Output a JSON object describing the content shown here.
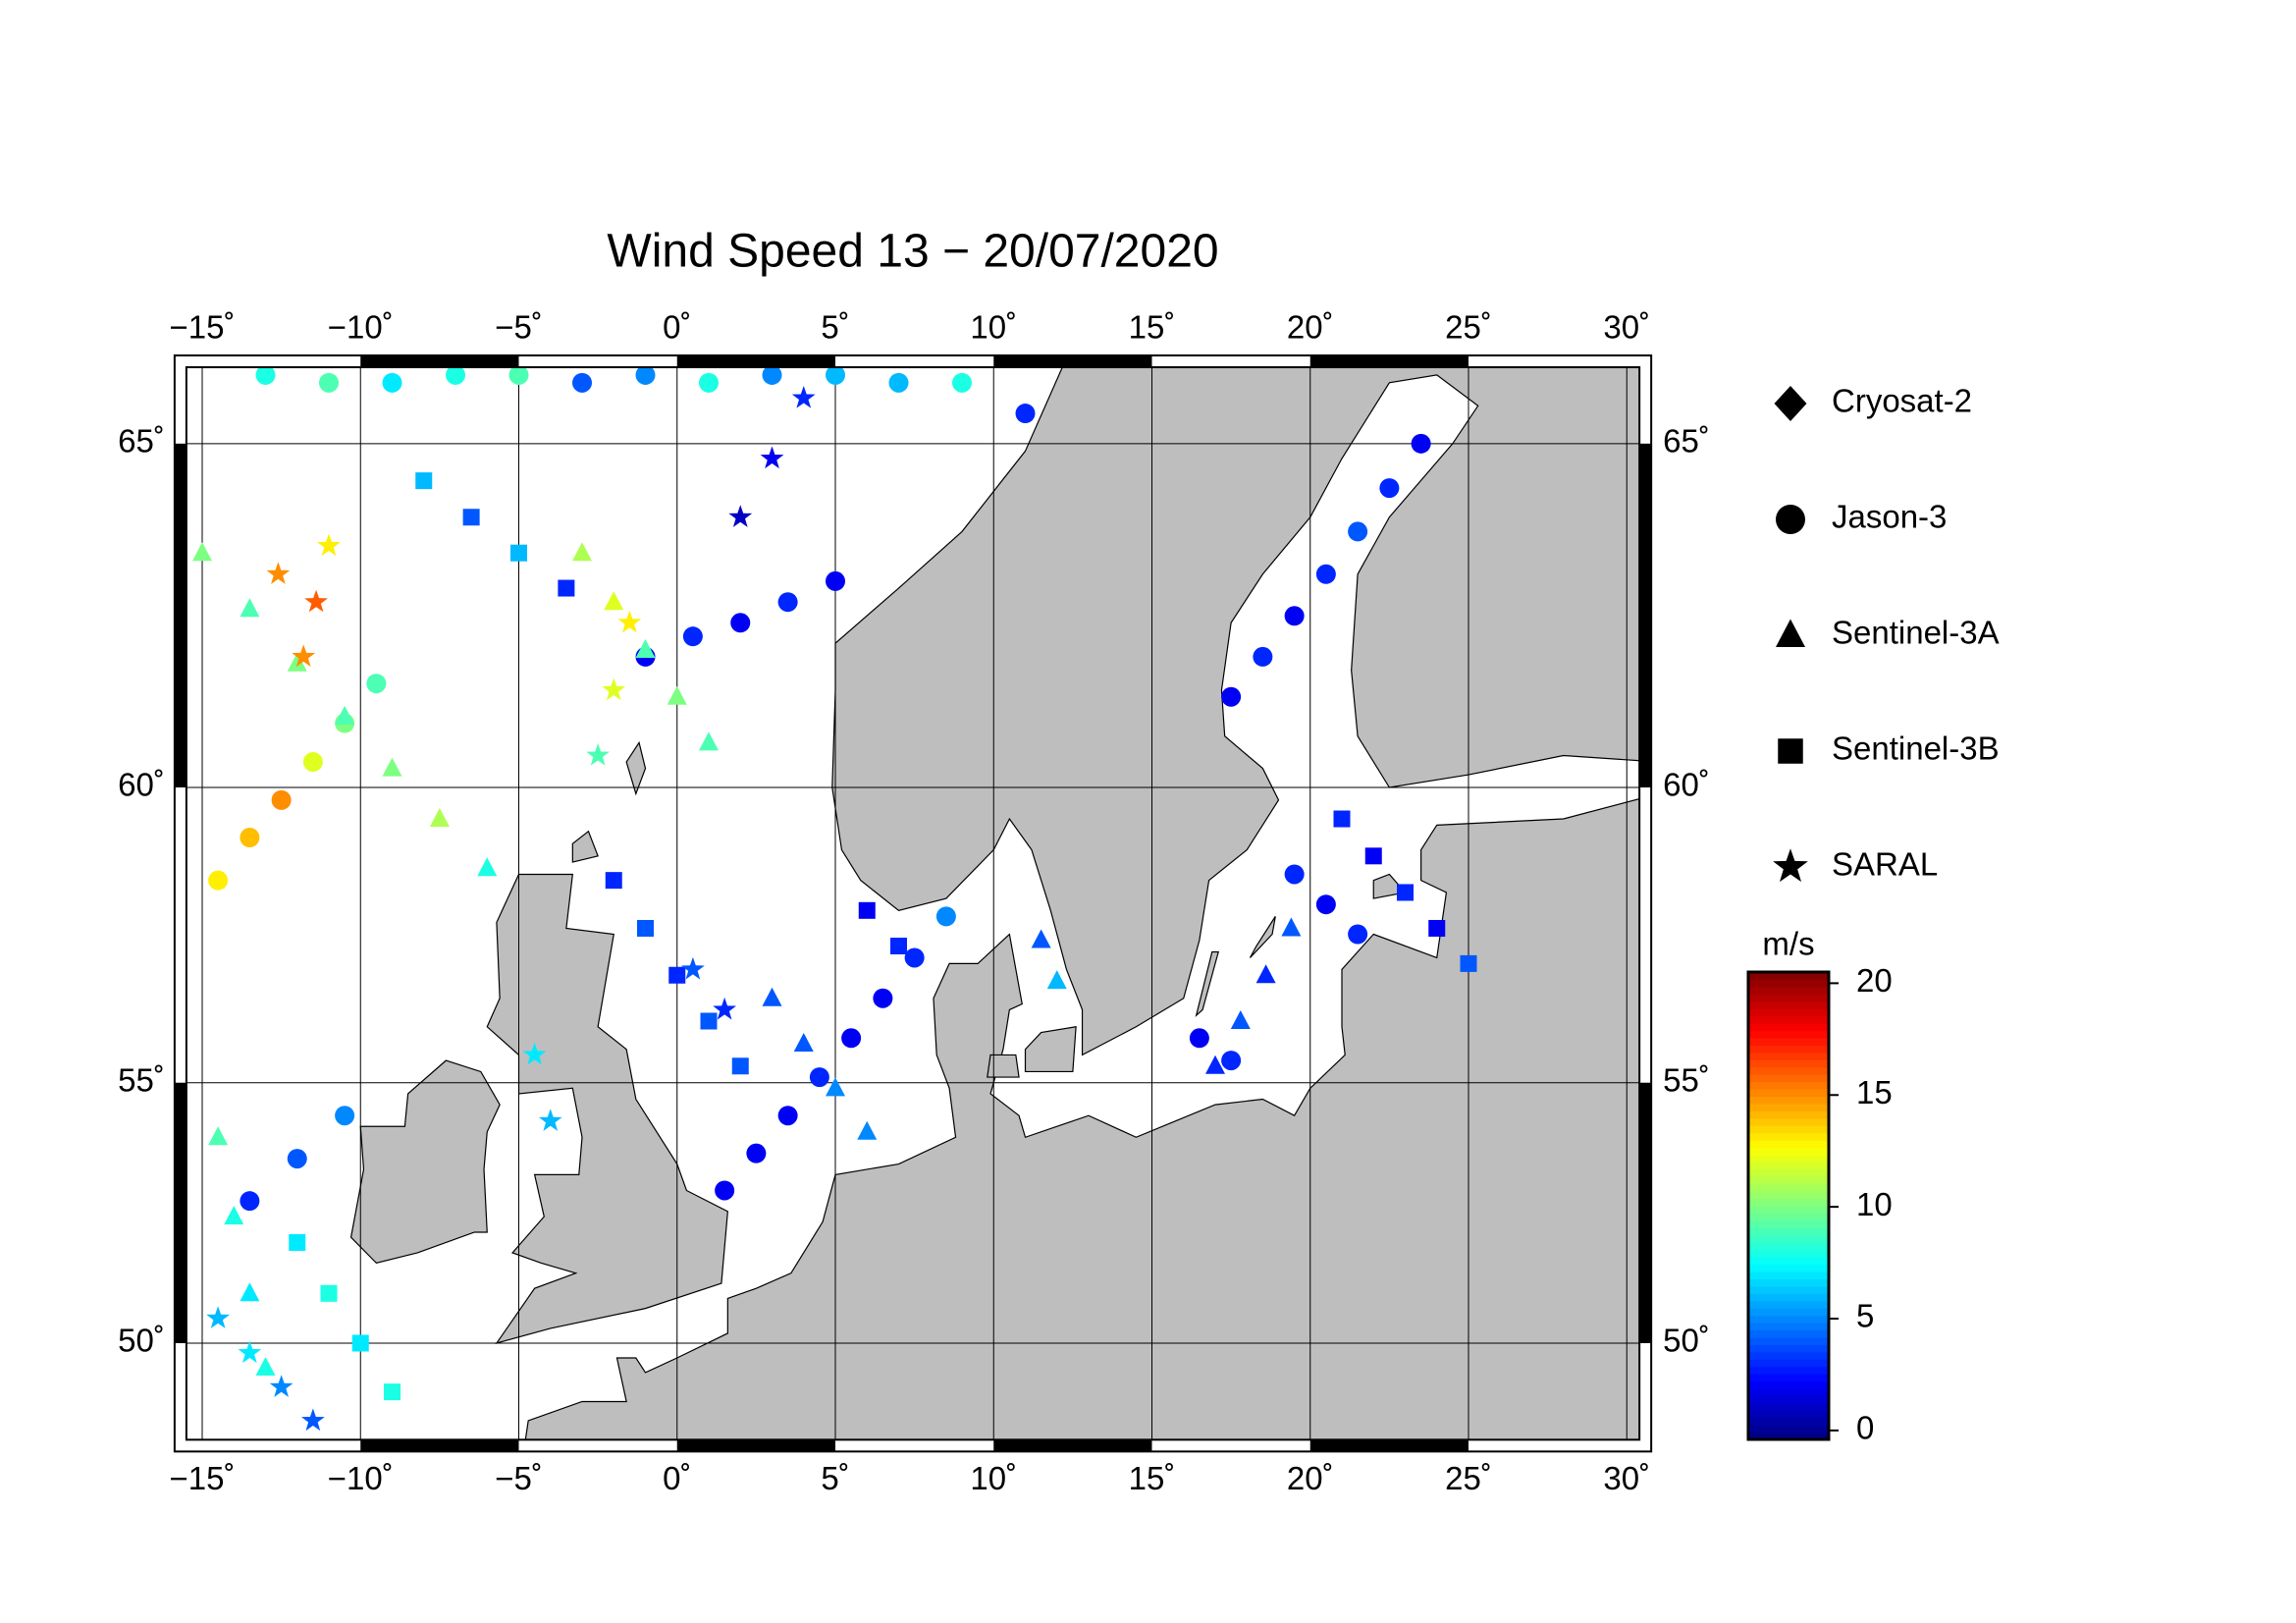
{
  "chart_data": {
    "type": "scatter-map",
    "title": "Wind Speed 13 − 20/07/2020",
    "projection": "mercator",
    "xlim": [
      -15.5,
      30.4
    ],
    "ylim": [
      48.0,
      66.0
    ],
    "grid": true,
    "xticks": [
      {
        "value": -15,
        "label": "−15˚"
      },
      {
        "value": -10,
        "label": "−10˚"
      },
      {
        "value": -5,
        "label": "−5˚"
      },
      {
        "value": 0,
        "label": "0˚"
      },
      {
        "value": 5,
        "label": "5˚"
      },
      {
        "value": 10,
        "label": "10˚"
      },
      {
        "value": 15,
        "label": "15˚"
      },
      {
        "value": 20,
        "label": "20˚"
      },
      {
        "value": 25,
        "label": "25˚"
      },
      {
        "value": 30,
        "label": "30˚"
      }
    ],
    "yticks": [
      {
        "value": 50,
        "label": "50˚"
      },
      {
        "value": 55,
        "label": "55˚"
      },
      {
        "value": 60,
        "label": "60˚"
      },
      {
        "value": 65,
        "label": "65˚"
      }
    ],
    "colorbar": {
      "label": "m/s",
      "colormap": "jet",
      "clim": [
        -0.4,
        20.5
      ],
      "ticks": [
        0,
        5,
        10,
        15,
        20
      ]
    },
    "series": [
      {
        "name": "Cryosat-2",
        "marker": "diamond",
        "points": []
      },
      {
        "name": "Jason-3",
        "marker": "circle",
        "points": [
          [
            -13,
            65.9,
            8
          ],
          [
            -11,
            65.8,
            9
          ],
          [
            -9,
            65.8,
            7
          ],
          [
            -7,
            65.9,
            8
          ],
          [
            -5,
            65.9,
            9
          ],
          [
            -3,
            65.8,
            4
          ],
          [
            -1,
            65.9,
            5
          ],
          [
            1,
            65.8,
            8
          ],
          [
            3,
            65.9,
            5
          ],
          [
            5,
            65.9,
            6
          ],
          [
            7,
            65.8,
            6
          ],
          [
            9,
            65.8,
            8
          ],
          [
            11,
            65.4,
            3
          ],
          [
            -14.5,
            58.5,
            13
          ],
          [
            -13.5,
            59.2,
            14
          ],
          [
            -12.5,
            59.8,
            15
          ],
          [
            -11.5,
            60.4,
            12
          ],
          [
            -10.5,
            61,
            10
          ],
          [
            -9.5,
            61.6,
            9
          ],
          [
            -13.5,
            52.8,
            3
          ],
          [
            -12,
            53.6,
            4
          ],
          [
            -10.5,
            54.4,
            5
          ],
          [
            1.5,
            53,
            2
          ],
          [
            2.5,
            53.7,
            2
          ],
          [
            3.5,
            54.4,
            2
          ],
          [
            4.5,
            55.1,
            3
          ],
          [
            5.5,
            55.8,
            2
          ],
          [
            6.5,
            56.5,
            2
          ],
          [
            7.5,
            57.2,
            3
          ],
          [
            8.5,
            57.9,
            5
          ],
          [
            -1,
            62,
            2
          ],
          [
            0.5,
            62.3,
            3
          ],
          [
            2,
            62.5,
            2
          ],
          [
            3.5,
            62.8,
            3
          ],
          [
            5,
            63.1,
            2
          ],
          [
            17.5,
            61.4,
            2
          ],
          [
            18.5,
            62,
            3
          ],
          [
            19.5,
            62.6,
            2
          ],
          [
            20.5,
            63.2,
            3
          ],
          [
            21.5,
            63.8,
            4
          ],
          [
            22.5,
            64.4,
            3
          ],
          [
            23.5,
            65,
            2
          ],
          [
            19.5,
            58.6,
            3
          ],
          [
            20.5,
            58.1,
            2
          ],
          [
            21.5,
            57.6,
            3
          ],
          [
            16.5,
            55.8,
            2
          ],
          [
            17.5,
            55.4,
            3
          ]
        ]
      },
      {
        "name": "Sentinel-3A",
        "marker": "triangle",
        "points": [
          [
            -15,
            63.5,
            10
          ],
          [
            -13.5,
            62.7,
            9
          ],
          [
            -12,
            61.9,
            10
          ],
          [
            -10.5,
            61.1,
            9
          ],
          [
            -9,
            60.3,
            10
          ],
          [
            -7.5,
            59.5,
            11
          ],
          [
            -6,
            58.7,
            8
          ],
          [
            -3,
            63.5,
            11
          ],
          [
            -2,
            62.8,
            12
          ],
          [
            -1,
            62.1,
            9
          ],
          [
            0,
            61.4,
            10
          ],
          [
            1,
            60.7,
            9
          ],
          [
            3,
            56.5,
            4
          ],
          [
            4,
            55.7,
            4
          ],
          [
            5,
            54.9,
            5
          ],
          [
            6,
            54.1,
            5
          ],
          [
            -14.5,
            54,
            9
          ],
          [
            -14,
            52.5,
            8
          ],
          [
            -13.5,
            51,
            7
          ],
          [
            -13,
            49.5,
            8
          ],
          [
            17,
            55.3,
            3
          ],
          [
            17.8,
            56.1,
            4
          ],
          [
            18.6,
            56.9,
            3
          ],
          [
            19.4,
            57.7,
            4
          ],
          [
            11.5,
            57.5,
            4
          ],
          [
            12,
            56.8,
            6
          ]
        ]
      },
      {
        "name": "Sentinel-3B",
        "marker": "square",
        "points": [
          [
            -12,
            52,
            7
          ],
          [
            -11,
            51,
            8
          ],
          [
            -10,
            50,
            7
          ],
          [
            -9,
            49,
            8
          ],
          [
            -8,
            64.5,
            6
          ],
          [
            -6.5,
            64,
            4
          ],
          [
            -5,
            63.5,
            6
          ],
          [
            -3.5,
            63,
            3
          ],
          [
            -2,
            58.5,
            3
          ],
          [
            -1,
            57.7,
            4
          ],
          [
            0,
            56.9,
            3
          ],
          [
            1,
            56.1,
            4
          ],
          [
            2,
            55.3,
            4
          ],
          [
            21,
            59.5,
            3
          ],
          [
            22,
            58.9,
            2
          ],
          [
            23,
            58.3,
            3
          ],
          [
            24,
            57.7,
            2
          ],
          [
            25,
            57.1,
            4
          ],
          [
            6,
            58,
            2
          ],
          [
            7,
            57.4,
            3
          ]
        ]
      },
      {
        "name": "SARAL",
        "marker": "star",
        "points": [
          [
            -14.5,
            50.5,
            6
          ],
          [
            -13.5,
            49.8,
            7
          ],
          [
            -12.5,
            49.1,
            5
          ],
          [
            -11.5,
            48.4,
            4
          ],
          [
            -11.8,
            62,
            15
          ],
          [
            -11.4,
            62.8,
            16
          ],
          [
            -11,
            63.6,
            13
          ],
          [
            -12.6,
            63.2,
            15
          ],
          [
            -2.5,
            60.5,
            9
          ],
          [
            -2,
            61.5,
            12
          ],
          [
            -1.5,
            62.5,
            13
          ],
          [
            2,
            64,
            1
          ],
          [
            3,
            64.8,
            2
          ],
          [
            4,
            65.6,
            3
          ],
          [
            -4,
            54.3,
            6
          ],
          [
            -4.5,
            55.5,
            7
          ],
          [
            0.5,
            57,
            4
          ],
          [
            1.5,
            56.3,
            3
          ]
        ]
      }
    ]
  }
}
